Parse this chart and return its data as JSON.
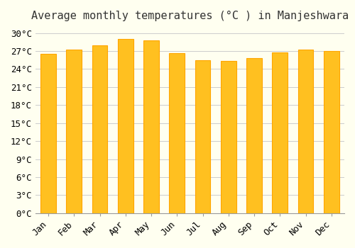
{
  "title": "Average monthly temperatures (°C ) in Manjeshwara",
  "months": [
    "Jan",
    "Feb",
    "Mar",
    "Apr",
    "May",
    "Jun",
    "Jul",
    "Aug",
    "Sep",
    "Oct",
    "Nov",
    "Dec"
  ],
  "values": [
    26.5,
    27.2,
    28.0,
    29.0,
    28.8,
    26.7,
    25.5,
    25.4,
    25.8,
    26.8,
    27.2,
    27.0
  ],
  "bar_color_face": "#FFC020",
  "bar_color_edge": "#FFA500",
  "background_color": "#FFFFF0",
  "grid_color": "#CCCCCC",
  "ylim": [
    0,
    31
  ],
  "ytick_values": [
    0,
    3,
    6,
    9,
    12,
    15,
    18,
    21,
    24,
    27,
    30
  ],
  "title_fontsize": 11,
  "tick_fontsize": 9,
  "title_font": "monospace",
  "tick_font": "monospace"
}
